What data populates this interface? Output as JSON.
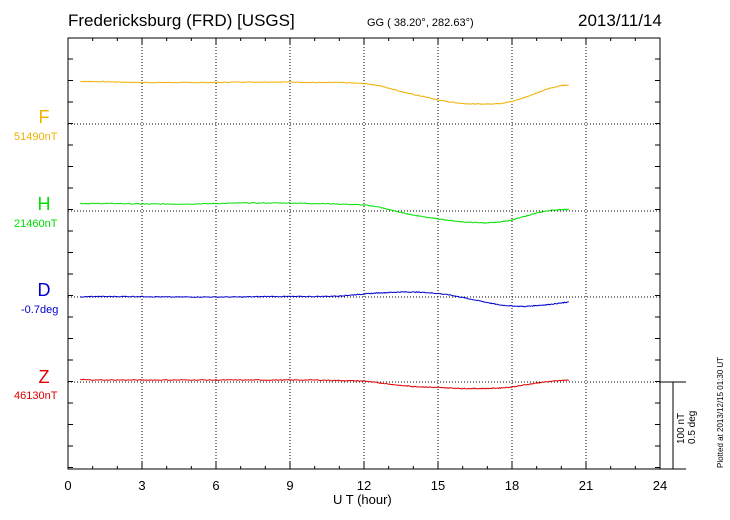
{
  "header": {
    "station": "Fredericksburg (FRD)  [USGS]",
    "coords": "GG ( 38.20°, 282.63°)",
    "date": "2013/11/14"
  },
  "side": {
    "scale_line1": "100 nT",
    "scale_line2": "0.5 deg",
    "plotted": "Plotted at 2013/12/15 01:30 UT"
  },
  "chart_data": {
    "type": "line",
    "xlabel": "U T (hour)",
    "xlim": [
      0,
      24
    ],
    "xticks": [
      "0",
      "3",
      "6",
      "9",
      "12",
      "15",
      "18",
      "21",
      "24"
    ],
    "grid": true,
    "series": [
      {
        "name": "F",
        "baseline_label": "51490nT",
        "color": "#f0b000",
        "x": [
          0.5,
          1,
          2,
          3,
          4,
          5,
          6,
          7,
          8,
          9,
          10,
          11,
          12,
          12.5,
          13,
          13.5,
          14,
          14.5,
          15,
          15.5,
          16,
          16.5,
          17,
          17.5,
          18,
          18.5,
          19,
          19.5,
          20,
          20.3
        ],
        "y": [
          85,
          85,
          84,
          83,
          83,
          83,
          83,
          84,
          84,
          84,
          83,
          83,
          81,
          78,
          72,
          65,
          59,
          54,
          48,
          44,
          41,
          40,
          40,
          41,
          45,
          53,
          62,
          71,
          77,
          78
        ]
      },
      {
        "name": "H",
        "baseline_label": "21460nT",
        "color": "#00e000",
        "x": [
          0.5,
          1,
          2,
          3,
          4,
          5,
          6,
          7,
          8,
          9,
          10,
          11,
          12,
          12.5,
          13,
          13.5,
          14,
          14.5,
          15,
          15.5,
          16,
          16.5,
          17,
          17.5,
          18,
          18.5,
          19,
          19.5,
          20,
          20.3
        ],
        "y": [
          15,
          15,
          15,
          14,
          14,
          14,
          15,
          16,
          16,
          16,
          15,
          14,
          12,
          9,
          3,
          -3,
          -8,
          -12,
          -16,
          -19,
          -22,
          -23,
          -24,
          -22,
          -18,
          -11,
          -4,
          1,
          3,
          3
        ]
      },
      {
        "name": "D",
        "baseline_label": "-0.7deg",
        "color": "#0000d0",
        "x": [
          0.5,
          1,
          2,
          3,
          4,
          5,
          6,
          7,
          8,
          9,
          10,
          11,
          11.5,
          12,
          12.5,
          13,
          13.5,
          14,
          14.5,
          15,
          15.5,
          16,
          16.5,
          17,
          17.5,
          18,
          18.5,
          19,
          19.5,
          20,
          20.3
        ],
        "y": [
          0,
          1,
          1,
          1,
          0,
          0,
          0,
          0,
          1,
          1,
          1,
          2,
          4,
          6,
          8,
          9,
          10,
          10,
          9,
          7,
          4,
          -1,
          -6,
          -11,
          -16,
          -18,
          -19,
          -17,
          -15,
          -12,
          -10
        ]
      },
      {
        "name": "Z",
        "baseline_label": "46130nT",
        "color": "#e00000",
        "x": [
          0.5,
          1,
          2,
          3,
          4,
          5,
          6,
          7,
          8,
          9,
          10,
          11,
          12,
          12.5,
          13,
          13.5,
          14,
          14.5,
          15,
          15.5,
          16,
          16.5,
          17,
          17.5,
          18,
          18.5,
          19,
          19.5,
          20,
          20.3
        ],
        "y": [
          5,
          4,
          4,
          4,
          4,
          4,
          4,
          4,
          4,
          4,
          4,
          3,
          2,
          -1,
          -4,
          -7,
          -9,
          -10,
          -11,
          -12,
          -13,
          -13,
          -13,
          -12,
          -10,
          -6,
          -2,
          1,
          3,
          4
        ]
      }
    ]
  }
}
